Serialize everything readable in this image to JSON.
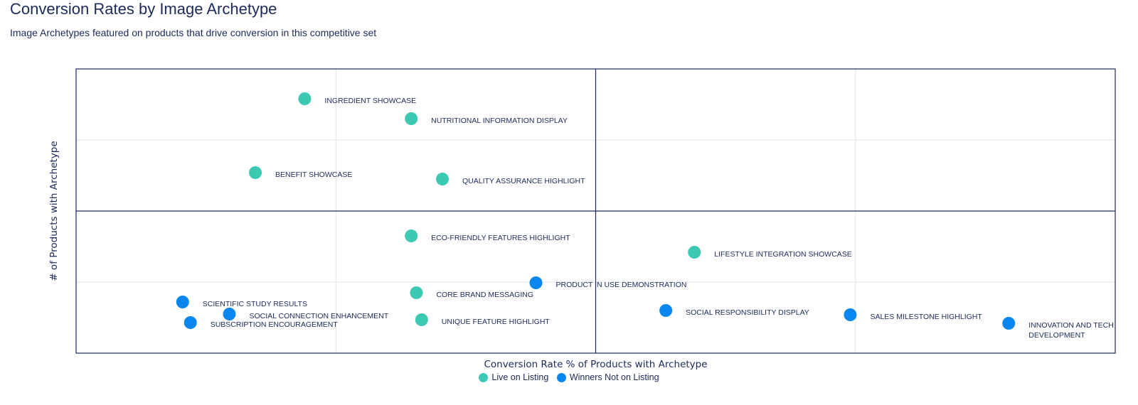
{
  "title": "Conversion Rates by Image Archetype",
  "subtitle": "Image Archetypes featured on products that drive conversion in this competitive set",
  "colors": {
    "live": "#3cc9b4",
    "winners": "#0a87ef",
    "axis": "#1c2a5a",
    "grid": "#dfe3ea"
  },
  "chart_data": {
    "type": "scatter",
    "xlabel": "Conversion Rate % of Products with Archetype",
    "ylabel": "# of Products with Archetype",
    "xlim": [
      0,
      4
    ],
    "ylim": [
      0,
      4
    ],
    "grid": true,
    "quadrant_lines": {
      "x": 2,
      "y": 2
    },
    "legend_position": "bottom-center",
    "series": [
      {
        "name": "Live on Listing",
        "color": "#3cc9b4",
        "points": [
          {
            "label": "INGREDIENT SHOWCASE",
            "x": 0.88,
            "y": 3.58
          },
          {
            "label": "NUTRITIONAL INFORMATION DISPLAY",
            "x": 1.29,
            "y": 3.3
          },
          {
            "label": "BENEFIT SHOWCASE",
            "x": 0.69,
            "y": 2.54
          },
          {
            "label": "QUALITY ASSURANCE HIGHLIGHT",
            "x": 1.41,
            "y": 2.45
          },
          {
            "label": "ECO-FRIENDLY FEATURES HIGHLIGHT",
            "x": 1.29,
            "y": 1.65
          },
          {
            "label": "LIFESTYLE INTEGRATION SHOWCASE",
            "x": 2.38,
            "y": 1.42
          },
          {
            "label": "CORE BRAND MESSAGING",
            "x": 1.31,
            "y": 0.85
          },
          {
            "label": "UNIQUE FEATURE HIGHLIGHT",
            "x": 1.33,
            "y": 0.47
          }
        ]
      },
      {
        "name": "Winners Not on Listing",
        "color": "#0a87ef",
        "points": [
          {
            "label": "PRODUCT IN USE DEMONSTRATION",
            "x": 1.77,
            "y": 0.99
          },
          {
            "label": "SCIENTIFIC STUDY RESULTS",
            "x": 0.41,
            "y": 0.72
          },
          {
            "label": "SOCIAL CONNECTION ENHANCEMENT",
            "x": 0.59,
            "y": 0.55
          },
          {
            "label": "SUBSCRIPTION ENCOURAGEMENT",
            "x": 0.44,
            "y": 0.43
          },
          {
            "label": "SOCIAL RESPONSIBILITY DISPLAY",
            "x": 2.27,
            "y": 0.6
          },
          {
            "label": "SALES MILESTONE HIGHLIGHT",
            "x": 2.98,
            "y": 0.54
          },
          {
            "label": "INNOVATION AND TECH DEVELOPMENT",
            "x": 3.59,
            "y": 0.42
          }
        ]
      }
    ]
  }
}
